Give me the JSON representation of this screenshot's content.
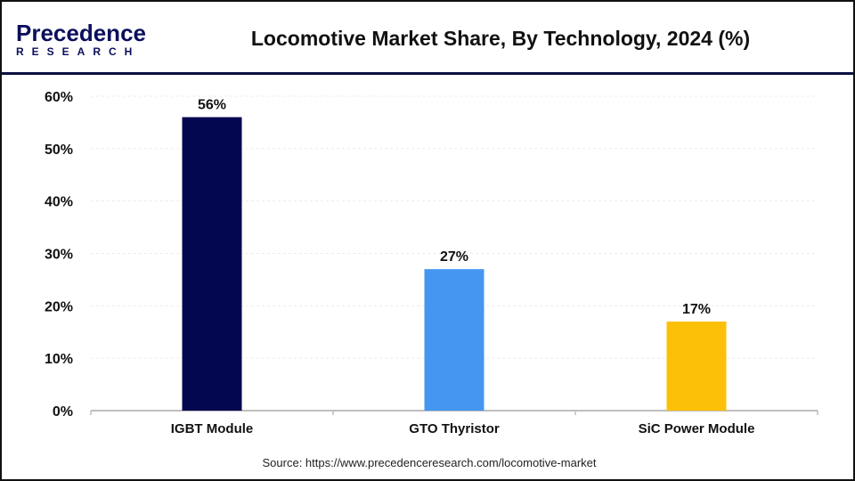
{
  "logo": {
    "line1": "Precedence",
    "line2": "RESEARCH"
  },
  "title": "Locomotive Market Share, By Technology, 2024 (%)",
  "source": "Source: https://www.precedenceresearch.com/locomotive-market",
  "colors": {
    "header_line": "#0b0f3f",
    "axis": "#bfbfbf"
  },
  "chart_data": {
    "type": "bar",
    "title": "Locomotive Market Share, By Technology, 2024 (%)",
    "categories": [
      "IGBT Module",
      "GTO Thyristor",
      "SiC Power Module"
    ],
    "values": [
      56,
      27,
      17
    ],
    "data_labels": [
      "56%",
      "27%",
      "17%"
    ],
    "colors": [
      "#02074f",
      "#4596f0",
      "#fcc008"
    ],
    "ylim": [
      0,
      60
    ],
    "yticks": [
      "0%",
      "10%",
      "20%",
      "30%",
      "40%",
      "50%",
      "60%"
    ],
    "grid": true,
    "xlabel": "",
    "ylabel": ""
  }
}
